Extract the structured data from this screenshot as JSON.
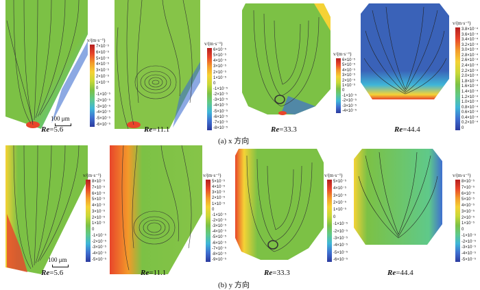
{
  "rows": [
    {
      "caption": "(a) x 方向",
      "panels": [
        {
          "re_label": "Re",
          "re_value": "=5.6",
          "bg": "#7bc043",
          "colorbar": {
            "title": "v/(m·s⁻¹)",
            "ticks": [
              "7×10⁻⁵",
              "6×10⁻⁵",
              "5×10⁻⁵",
              "4×10⁻⁵",
              "3×10⁻⁵",
              "2×10⁻⁵",
              "1×10⁻⁵",
              "0",
              "-1×10⁻⁵",
              "-2×10⁻⁵",
              "-3×10⁻⁵",
              "-4×10⁻⁵",
              "-5×10⁻⁵",
              "-6×10⁻⁵"
            ]
          }
        },
        {
          "re_label": "Re",
          "re_value": "=11.1",
          "bg": "#86c448",
          "colorbar": {
            "title": "v/(m·s⁻¹)",
            "ticks": [
              "6×10⁻⁵",
              "5×10⁻⁵",
              "4×10⁻⁵",
              "3×10⁻⁵",
              "2×10⁻⁵",
              "1×10⁻⁵",
              "0",
              "-1×10⁻⁵",
              "-2×10⁻⁵",
              "-3×10⁻⁵",
              "-4×10⁻⁵",
              "-5×10⁻⁵",
              "-6×10⁻⁵",
              "-7×10⁻⁵",
              "-8×10⁻⁵"
            ]
          }
        },
        {
          "re_label": "Re",
          "re_value": "=33.3",
          "bg": "#7cc145",
          "colorbar": {
            "title": "v/(m·s⁻¹)",
            "ticks": [
              "6×10⁻⁵",
              "5×10⁻⁵",
              "4×10⁻⁵",
              "3×10⁻⁵",
              "2×10⁻⁵",
              "1×10⁻⁵",
              "0",
              "-1×10⁻⁵",
              "-2×10⁻⁵",
              "-3×10⁻⁵",
              "-4×10⁻⁵"
            ]
          }
        },
        {
          "re_label": "Re",
          "re_value": "=44.4",
          "bg": "#3a62b8",
          "colorbar": {
            "title": "v/(m·s⁻¹)",
            "ticks": [
              "3.8×10⁻⁴",
              "3.6×10⁻⁴",
              "3.4×10⁻⁴",
              "3.2×10⁻⁴",
              "3.0×10⁻⁴",
              "2.8×10⁻⁴",
              "2.6×10⁻⁴",
              "2.4×10⁻⁴",
              "2.2×10⁻⁴",
              "2.0×10⁻⁴",
              "1.8×10⁻⁴",
              "1.6×10⁻⁴",
              "1.4×10⁻⁴",
              "1.2×10⁻⁴",
              "1.0×10⁻⁴",
              "0.8×10⁻⁴",
              "0.6×10⁻⁴",
              "0.4×10⁻⁴",
              "0.2×10⁻⁴",
              "0"
            ]
          }
        }
      ]
    },
    {
      "caption": "(b) y 方向",
      "panels": [
        {
          "re_label": "Re",
          "re_value": "=5.6",
          "bg": "#7bc043",
          "colorbar": {
            "title": "v/(m·s⁻¹)",
            "ticks": [
              "8×10⁻⁵",
              "7×10⁻⁵",
              "6×10⁻⁵",
              "5×10⁻⁵",
              "4×10⁻⁵",
              "3×10⁻⁵",
              "2×10⁻⁵",
              "1×10⁻⁵",
              "0",
              "-1×10⁻⁵",
              "-2×10⁻⁵",
              "-3×10⁻⁵",
              "-4×10⁻⁵",
              "-5×10⁻⁵"
            ]
          }
        },
        {
          "re_label": "Re",
          "re_value": "=11.1",
          "bg": "#86c448",
          "colorbar": {
            "title": "v/(m·s⁻¹)",
            "ticks": [
              "5×10⁻⁵",
              "4×10⁻⁵",
              "3×10⁻⁵",
              "2×10⁻⁵",
              "1×10⁻⁵",
              "0",
              "-1×10⁻⁵",
              "-2×10⁻⁵",
              "-3×10⁻⁵",
              "-4×10⁻⁵",
              "-5×10⁻⁵",
              "-6×10⁻⁵",
              "-7×10⁻⁵",
              "-8×10⁻⁵",
              "-9×10⁻⁵"
            ]
          }
        },
        {
          "re_label": "Re",
          "re_value": "=33.3",
          "bg": "#7cc145",
          "colorbar": {
            "title": "v/(m·s⁻¹)",
            "ticks": [
              "5×10⁻⁵",
              "4×10⁻⁵",
              "3×10⁻⁵",
              "2×10⁻⁵",
              "1×10⁻⁵",
              "0",
              "-1×10⁻⁵",
              "-2×10⁻⁵",
              "-3×10⁻⁵",
              "-4×10⁻⁵",
              "-5×10⁻⁵",
              "-6×10⁻⁵"
            ]
          }
        },
        {
          "re_label": "Re",
          "re_value": "=44.4",
          "bg": "#7cc145",
          "colorbar": {
            "title": "v/(m·s⁻¹)",
            "ticks": [
              "8×10⁻⁵",
              "7×10⁻⁵",
              "6×10⁻⁵",
              "5×10⁻⁵",
              "4×10⁻⁵",
              "3×10⁻⁵",
              "2×10⁻⁵",
              "1×10⁻⁵",
              "0",
              "-1×10⁻⁵",
              "-2×10⁻⁵",
              "-3×10⁻⁵",
              "-4×10⁻⁵",
              "-5×10⁻⁵"
            ]
          }
        }
      ]
    }
  ],
  "scale_bar": "100 μm",
  "colors": {
    "jet": [
      "#2b3a9e",
      "#3f6fd0",
      "#3fb6d8",
      "#5fc98a",
      "#7cc145",
      "#c8d838",
      "#f5d235",
      "#f39a2a",
      "#e8452a",
      "#b51f1f"
    ]
  }
}
